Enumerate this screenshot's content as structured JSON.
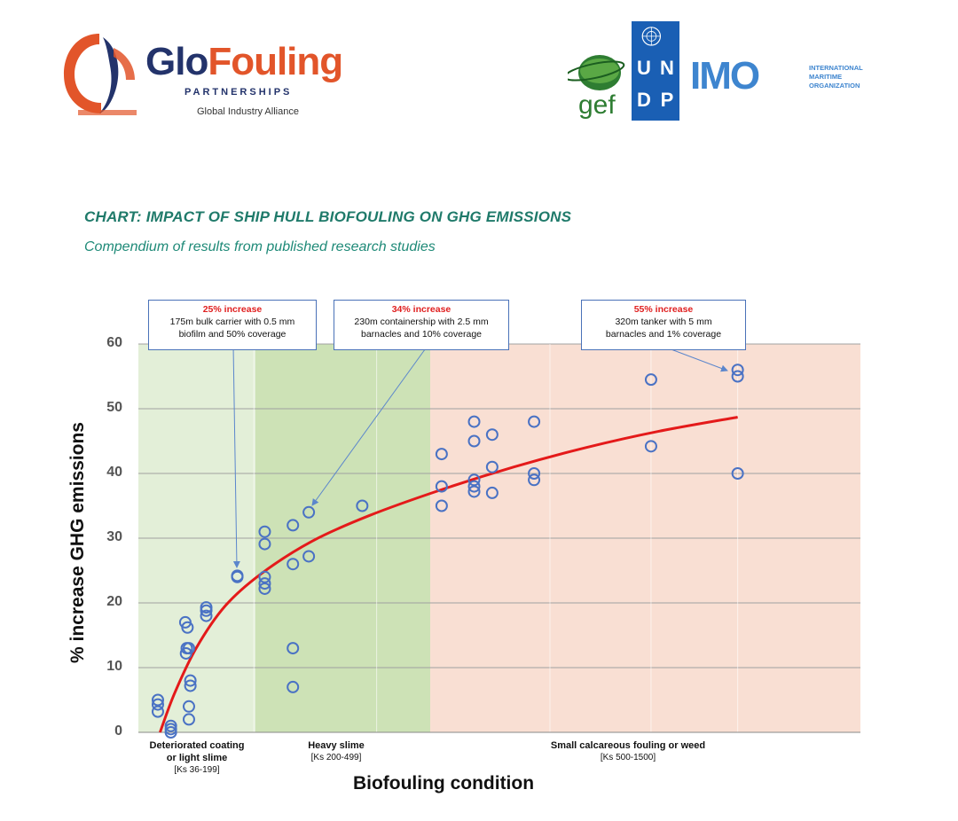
{
  "header": {
    "glofouling": {
      "word_part1": "Glo",
      "word_part2": "Fouling",
      "partnerships": "PARTNERSHIPS",
      "alliance": "Global Industry Alliance"
    },
    "gef": "gef",
    "undp_letters": [
      "U",
      "N",
      "D",
      "P"
    ],
    "imo": {
      "acronym": "IMO",
      "org_lines": [
        "INTERNATIONAL",
        "MARITIME",
        "ORGANIZATION"
      ]
    },
    "colors": {
      "glo_navy": "#23336b",
      "glo_orange": "#e2552a",
      "undp_blue": "#1a5fb4",
      "imo_blue": "#3e85cf",
      "gef_green": "#2e7d32"
    }
  },
  "chart_data": {
    "type": "scatter",
    "title": "CHART: IMPACT OF SHIP HULL BIOFOULING ON GHG EMISSIONS",
    "subtitle": "Compendium of results from published research studies",
    "xlabel": "Biofouling condition",
    "ylabel": "% increase GHG emissions",
    "ylim": [
      0,
      60
    ],
    "yticks": [
      "0",
      "10",
      "20",
      "30",
      "40",
      "50",
      "60"
    ],
    "grid": true,
    "regions": [
      {
        "name": "Deteriorated coating or light slime",
        "line1": "Deteriorated coating",
        "line2": "or light slime",
        "ks": "[Ks 36-199]",
        "color": "#e3efd8",
        "x_start": 36,
        "x_end": 199
      },
      {
        "name": "Heavy slime",
        "line1": "Heavy slime",
        "line2": "",
        "ks": "[Ks 200-499]",
        "color": "#cde2b6",
        "x_start": 200,
        "x_end": 499
      },
      {
        "name": "Small calcareous fouling or weed",
        "line1": "Small calcareous fouling or weed",
        "line2": "",
        "ks": "[Ks 500-1500]",
        "color": "#f9dfd3",
        "x_start": 500,
        "x_end": 1500
      }
    ],
    "x_positions": [
      0.02,
      0.06,
      0.08,
      0.1,
      0.13,
      0.17,
      0.175,
      0.2,
      0.23,
      0.24,
      0.25,
      0.27,
      0.3,
      0.32,
      0.34,
      0.42,
      0.44,
      0.48,
      0.5,
      0.55,
      0.7,
      0.72,
      0.83
    ],
    "points": [
      {
        "x": 0.027,
        "y": 5
      },
      {
        "x": 0.027,
        "y": 4.3
      },
      {
        "x": 0.027,
        "y": 3.2
      },
      {
        "x": 0.045,
        "y": 1
      },
      {
        "x": 0.045,
        "y": 0.5
      },
      {
        "x": 0.045,
        "y": 0
      },
      {
        "x": 0.065,
        "y": 17
      },
      {
        "x": 0.068,
        "y": 16.2
      },
      {
        "x": 0.067,
        "y": 13
      },
      {
        "x": 0.07,
        "y": 13
      },
      {
        "x": 0.066,
        "y": 12.2
      },
      {
        "x": 0.072,
        "y": 8
      },
      {
        "x": 0.072,
        "y": 7.2
      },
      {
        "x": 0.07,
        "y": 4
      },
      {
        "x": 0.07,
        "y": 2
      },
      {
        "x": 0.094,
        "y": 19.3
      },
      {
        "x": 0.094,
        "y": 18.8
      },
      {
        "x": 0.094,
        "y": 18
      },
      {
        "x": 0.137,
        "y": 24
      },
      {
        "x": 0.137,
        "y": 24.2
      },
      {
        "x": 0.175,
        "y": 31
      },
      {
        "x": 0.175,
        "y": 29.1
      },
      {
        "x": 0.175,
        "y": 24
      },
      {
        "x": 0.175,
        "y": 23
      },
      {
        "x": 0.175,
        "y": 22.2
      },
      {
        "x": 0.214,
        "y": 32
      },
      {
        "x": 0.214,
        "y": 26
      },
      {
        "x": 0.214,
        "y": 13
      },
      {
        "x": 0.214,
        "y": 7
      },
      {
        "x": 0.236,
        "y": 34
      },
      {
        "x": 0.236,
        "y": 27.2
      },
      {
        "x": 0.31,
        "y": 35
      },
      {
        "x": 0.42,
        "y": 43
      },
      {
        "x": 0.42,
        "y": 38
      },
      {
        "x": 0.42,
        "y": 35
      },
      {
        "x": 0.465,
        "y": 48
      },
      {
        "x": 0.465,
        "y": 45
      },
      {
        "x": 0.465,
        "y": 39
      },
      {
        "x": 0.465,
        "y": 38
      },
      {
        "x": 0.465,
        "y": 37.2
      },
      {
        "x": 0.49,
        "y": 46
      },
      {
        "x": 0.49,
        "y": 41
      },
      {
        "x": 0.49,
        "y": 37
      },
      {
        "x": 0.548,
        "y": 48
      },
      {
        "x": 0.548,
        "y": 40
      },
      {
        "x": 0.548,
        "y": 39
      },
      {
        "x": 0.71,
        "y": 54.5
      },
      {
        "x": 0.71,
        "y": 44.2
      },
      {
        "x": 0.83,
        "y": 56
      },
      {
        "x": 0.83,
        "y": 55
      },
      {
        "x": 0.83,
        "y": 40
      }
    ],
    "trend": [
      {
        "x": 0.03,
        "y": 0
      },
      {
        "x": 0.05,
        "y": 6
      },
      {
        "x": 0.08,
        "y": 13
      },
      {
        "x": 0.12,
        "y": 19.5
      },
      {
        "x": 0.17,
        "y": 24.5
      },
      {
        "x": 0.24,
        "y": 29.5
      },
      {
        "x": 0.32,
        "y": 33.5
      },
      {
        "x": 0.42,
        "y": 37.5
      },
      {
        "x": 0.52,
        "y": 41
      },
      {
        "x": 0.62,
        "y": 44
      },
      {
        "x": 0.72,
        "y": 46.5
      },
      {
        "x": 0.83,
        "y": 48.7
      }
    ],
    "colors": {
      "points": "#4a72c4",
      "trend": "#e41a1a",
      "grid": "#a0a0a0",
      "annot_border": "#4a72b8",
      "annot_arrow": "#5b86cc"
    },
    "annotations": [
      {
        "headline": "25% increase",
        "line1": "175m bulk carrier with 0.5 mm",
        "line2": "biofilm and 50% coverage"
      },
      {
        "headline": "34% increase",
        "line1": "230m containership with 2.5 mm",
        "line2": "barnacles and 10% coverage"
      },
      {
        "headline": "55% increase",
        "line1": "320m tanker with 5 mm",
        "line2": "barnacles and 1% coverage"
      }
    ]
  }
}
